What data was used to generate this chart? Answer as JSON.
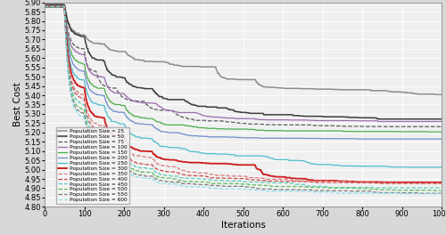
{
  "xlabel": "Iterations",
  "ylabel": "Best Cost",
  "xlim": [
    0,
    1000
  ],
  "ylim": [
    4.8,
    5.9
  ],
  "yticks": [
    4.8,
    4.85,
    4.9,
    4.95,
    5.0,
    5.05,
    5.1,
    5.15,
    5.2,
    5.25,
    5.3,
    5.35,
    5.4,
    5.45,
    5.5,
    5.55,
    5.6,
    5.65,
    5.7,
    5.75,
    5.8,
    5.85,
    5.9
  ],
  "xticks": [
    0,
    100,
    200,
    300,
    400,
    500,
    600,
    700,
    800,
    900,
    1000
  ],
  "background_color": "#f0f0f0",
  "grid_color": "#ffffff",
  "series": [
    {
      "label": "Population Size = 25",
      "color": "#888888",
      "lw": 1.1,
      "ls": "-"
    },
    {
      "label": "Population Size = 50",
      "color": "#333333",
      "lw": 1.1,
      "ls": "-"
    },
    {
      "label": "Population Size = 75",
      "color": "#555555",
      "lw": 0.9,
      "ls": "--"
    },
    {
      "label": "Population Size = 100",
      "color": "#9966aa",
      "lw": 0.9,
      "ls": "-"
    },
    {
      "label": "Population Size = 150",
      "color": "#44aa44",
      "lw": 0.9,
      "ls": "-"
    },
    {
      "label": "Population Size = 200",
      "color": "#6688cc",
      "lw": 0.9,
      "ls": "-"
    },
    {
      "label": "Population Size = 250",
      "color": "#44bbcc",
      "lw": 0.9,
      "ls": "-"
    },
    {
      "label": "Population Size = 300",
      "color": "#cc1111",
      "lw": 1.3,
      "ls": "-"
    },
    {
      "label": "Population Size = 350",
      "color": "#dd7777",
      "lw": 0.9,
      "ls": "--"
    },
    {
      "label": "Population Size = 400",
      "color": "#cc4444",
      "lw": 0.9,
      "ls": "--"
    },
    {
      "label": "Population Size = 450",
      "color": "#55ccbb",
      "lw": 0.9,
      "ls": "--"
    },
    {
      "label": "Population Size = 500",
      "color": "#55bb55",
      "lw": 0.9,
      "ls": "--"
    },
    {
      "label": "Population Size = 550",
      "color": "#777777",
      "lw": 0.9,
      "ls": "--"
    },
    {
      "label": "Population Size = 600",
      "color": "#88ddee",
      "lw": 0.9,
      "ls": "--"
    }
  ]
}
